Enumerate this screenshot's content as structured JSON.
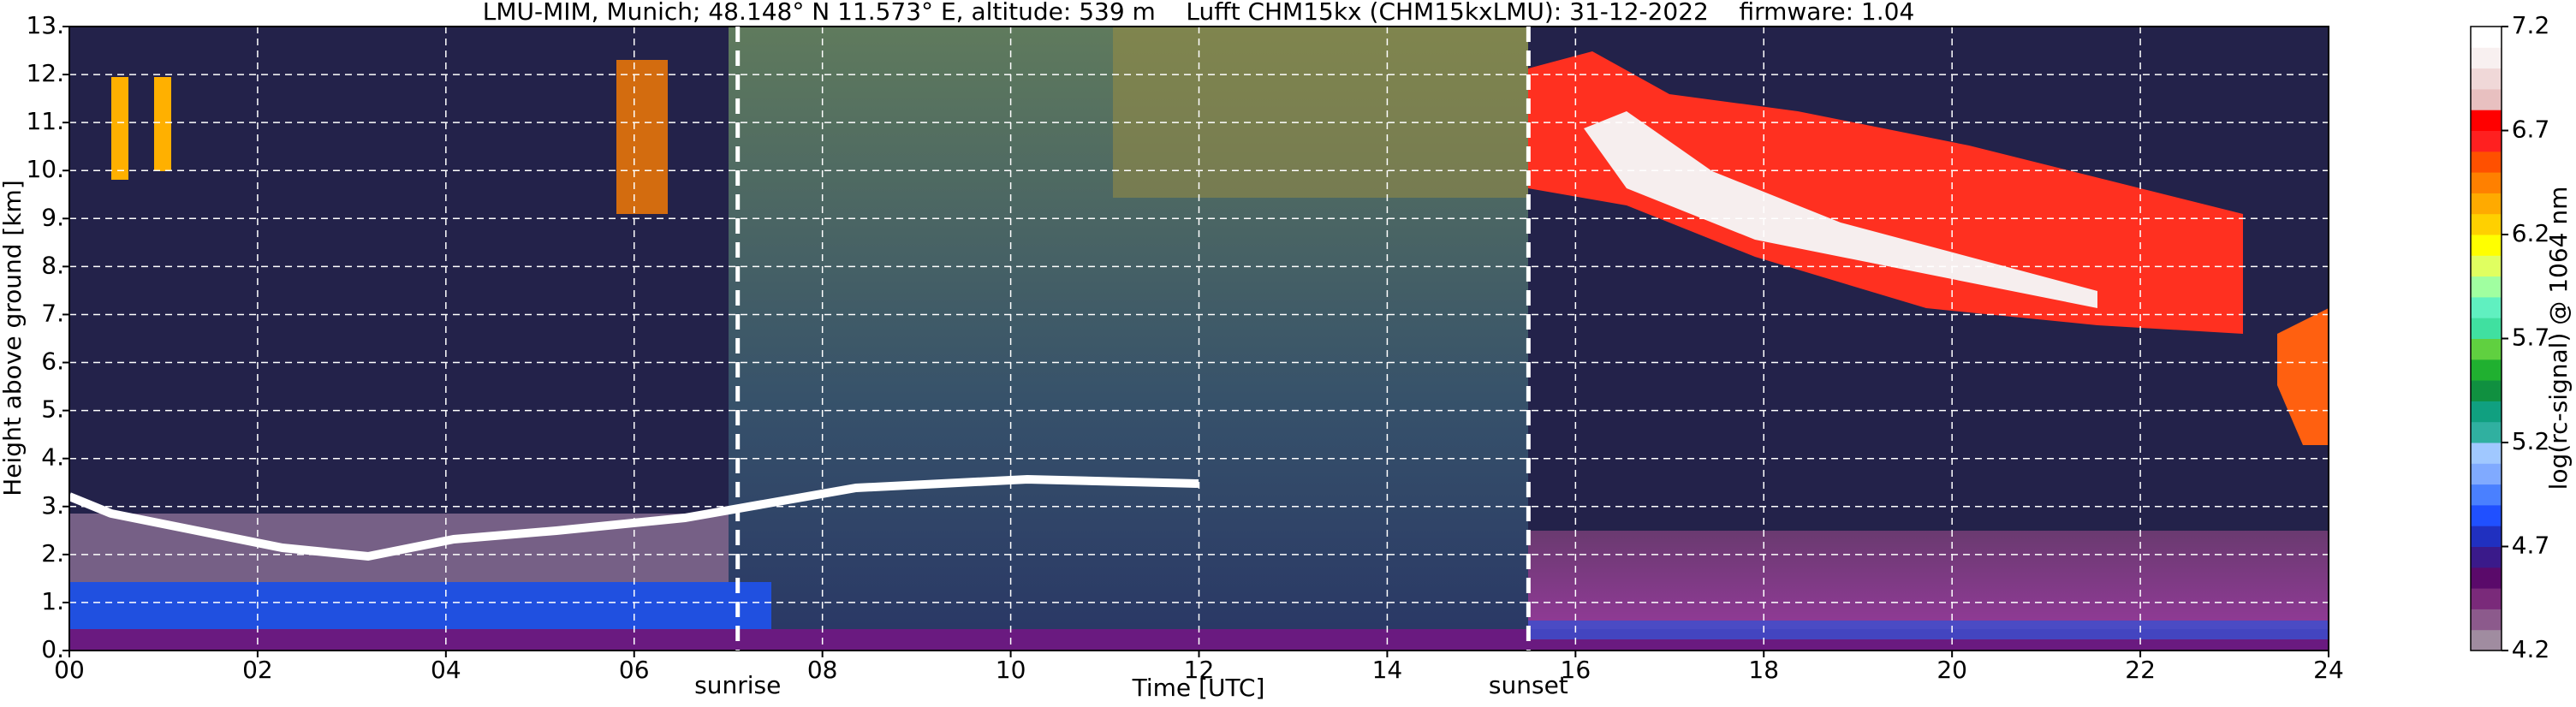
{
  "chart_data": {
    "type": "heatmap",
    "title": "LMU-MIM, Munich; 48.148° N 11.573° E, altitude: 539 m    Lufft CHM15kx (CHM15kxLMU): 31-12-2022    firmware: 1.04",
    "x_label": "Time [UTC]",
    "y_label": "Height above ground [km]",
    "xlim": [
      0,
      24
    ],
    "xticks": [
      {
        "value": 0,
        "label": "00"
      },
      {
        "value": 2,
        "label": "02"
      },
      {
        "value": 4,
        "label": "04"
      },
      {
        "value": 6,
        "label": "06"
      },
      {
        "value": 8,
        "label": "08"
      },
      10,
      12,
      14,
      16,
      18,
      20,
      22,
      24
    ],
    "ylim": [
      0,
      13
    ],
    "yticks": [
      {
        "value": 0,
        "label": "0."
      },
      {
        "value": 1,
        "label": "1."
      },
      {
        "value": 2,
        "label": "2."
      },
      {
        "value": 3,
        "label": "3."
      },
      {
        "value": 4,
        "label": "4."
      },
      {
        "value": 5,
        "label": "5."
      },
      {
        "value": 6,
        "label": "6."
      },
      {
        "value": 7,
        "label": "7."
      },
      {
        "value": 8,
        "label": "8."
      },
      {
        "value": 9,
        "label": "9."
      },
      {
        "value": 10,
        "label": "10."
      },
      {
        "value": 11,
        "label": "11."
      },
      {
        "value": 12,
        "label": "12."
      },
      {
        "value": 13,
        "label": "13."
      }
    ],
    "grid": true,
    "annotations": [
      {
        "text": "sunrise",
        "x": 7.1
      },
      {
        "text": "sunset",
        "x": 15.5
      }
    ],
    "colorbar": {
      "label": "log(rc-signal) @ 1064 nm",
      "lim": [
        4.2,
        7.2
      ],
      "ticks": [
        4.2,
        4.7,
        5.2,
        5.7,
        6.2,
        6.7,
        7.2
      ],
      "colors": [
        "#a08ca0",
        "#8c5a8c",
        "#7a2a7a",
        "#5a0a6a",
        "#3a1a8a",
        "#2030c0",
        "#2050ff",
        "#4a80ff",
        "#80aaff",
        "#a0c8ff",
        "#30b0a0",
        "#10a080",
        "#109040",
        "#20b030",
        "#60d040",
        "#40e0a0",
        "#60f0c0",
        "#a0ffa0",
        "#e0ff60",
        "#ffff00",
        "#ffd000",
        "#ffaa00",
        "#ff8000",
        "#ff5000",
        "#ff2020",
        "#ff0000",
        "#e8c0c0",
        "#f0d8d8",
        "#f8f0f0",
        "#ffffff"
      ]
    }
  }
}
